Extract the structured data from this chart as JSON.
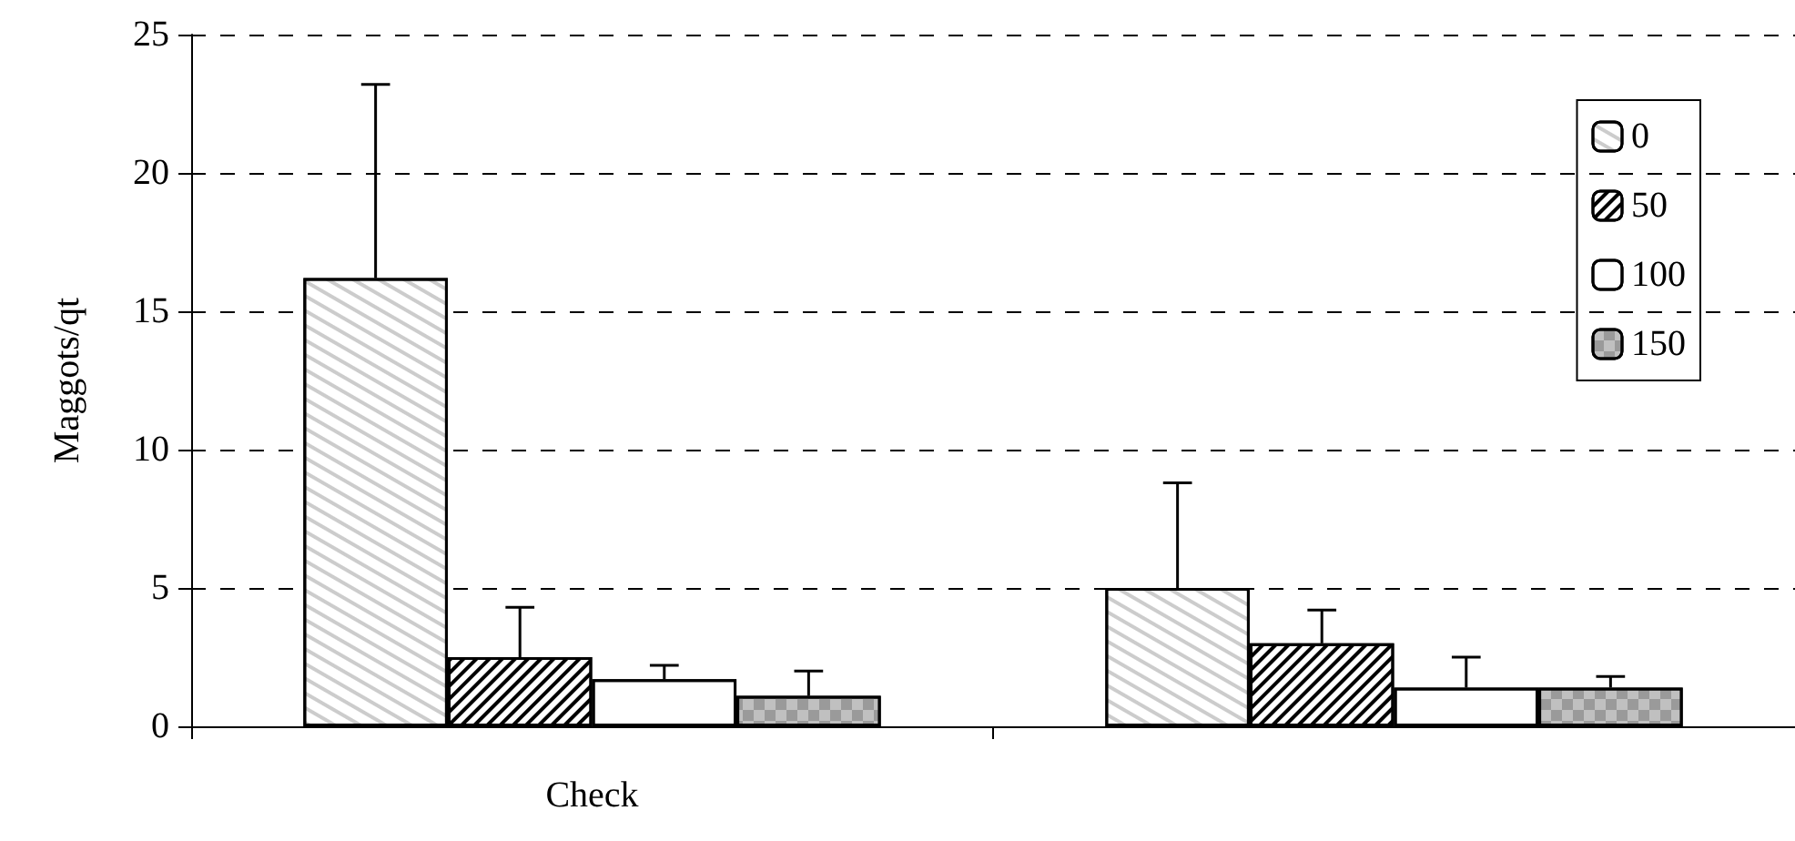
{
  "chart_data": {
    "type": "bar",
    "ylabel": "Maggots/qt",
    "categories": [
      "Check",
      null
    ],
    "series": [
      {
        "name": "0",
        "color": "#ffffff",
        "values": [
          16.2,
          5.0
        ],
        "errors": [
          [
            16.2,
            23.2
          ],
          [
            5.0,
            8.8
          ]
        ]
      },
      {
        "name": "50",
        "color": "#ffffff",
        "values": [
          2.5,
          3.0
        ],
        "errors": [
          [
            2.5,
            4.3
          ],
          [
            3.0,
            4.2
          ]
        ]
      },
      {
        "name": "100",
        "color": "#ffffff",
        "values": [
          1.7,
          1.4
        ],
        "errors": [
          [
            1.7,
            2.2
          ],
          [
            1.4,
            2.5
          ]
        ]
      },
      {
        "name": "150",
        "color": "#c0c0c0",
        "values": [
          1.1,
          1.4
        ],
        "errors": [
          [
            1.1,
            2.0
          ],
          [
            1.4,
            1.8
          ]
        ]
      }
    ],
    "ylim": [
      0,
      25
    ],
    "yticks": [
      0,
      5,
      10,
      15,
      20,
      25
    ],
    "grid": "y",
    "legend": "top right"
  }
}
